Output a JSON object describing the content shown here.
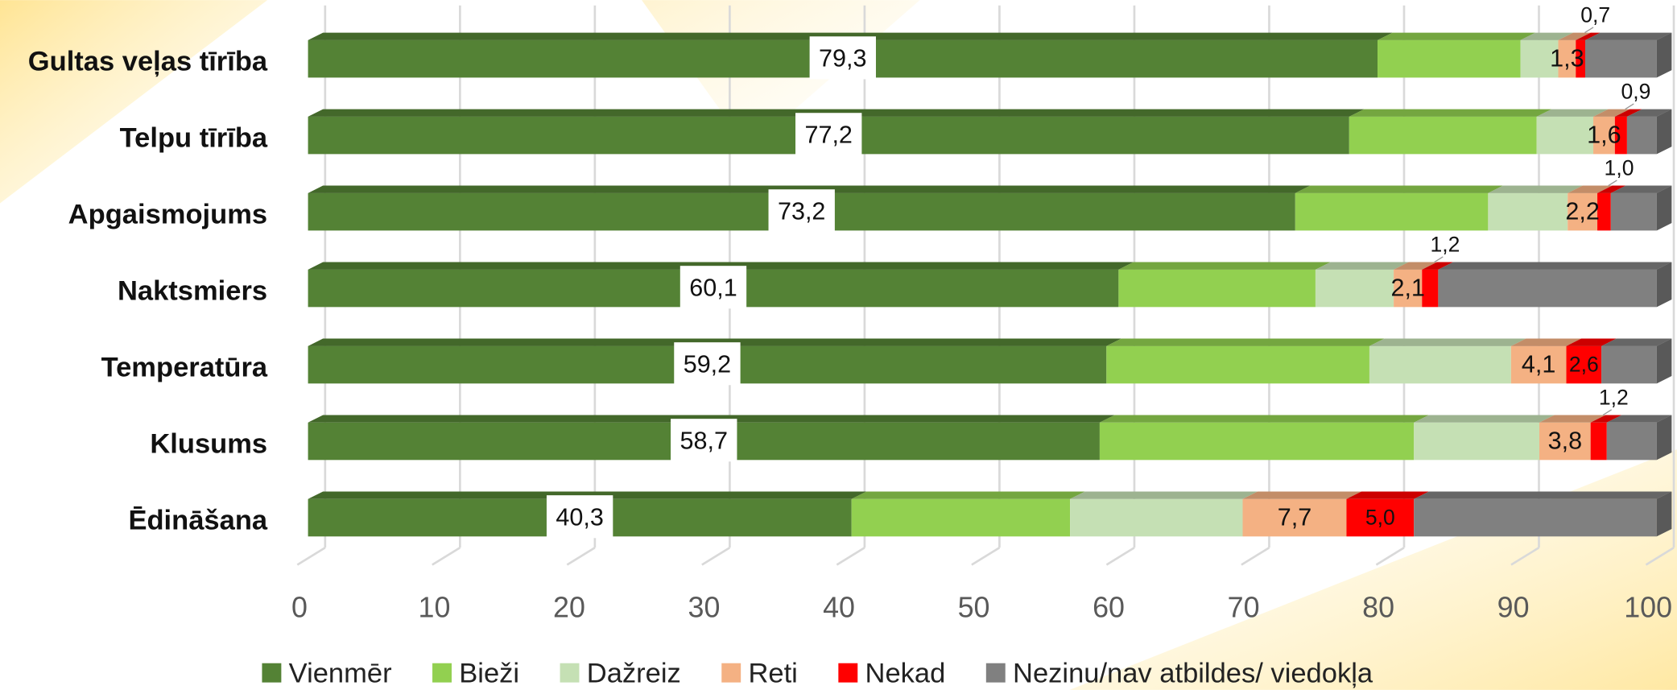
{
  "chart_data": {
    "type": "stacked-bar-horizontal",
    "categories": [
      "Gultas veļas tīrība",
      "Telpu tīrība",
      "Apgaismojums",
      "Naktsmiers",
      "Temperatūra",
      "Klusums",
      "Ēdināšana"
    ],
    "series": [
      {
        "name": "Vienmēr",
        "color": "#548235",
        "values": [
          79.3,
          77.2,
          73.2,
          60.1,
          59.2,
          58.7,
          40.3
        ],
        "value_labels": [
          "79,3",
          "77,2",
          "73,2",
          "60,1",
          "59,2",
          "58,7",
          "40,3"
        ]
      },
      {
        "name": "Bieži",
        "color": "#92d050",
        "values": [
          10.6,
          13.9,
          14.3,
          14.6,
          19.5,
          23.3,
          16.2
        ]
      },
      {
        "name": "Dažreiz",
        "color": "#c5e0b4",
        "values": [
          2.8,
          4.2,
          5.9,
          5.8,
          10.5,
          9.3,
          12.8
        ]
      },
      {
        "name": "Reti",
        "color": "#f4b183",
        "values": [
          1.3,
          1.6,
          2.2,
          2.1,
          4.1,
          3.8,
          7.7
        ],
        "value_labels": [
          "1,3",
          "1,6",
          "2,2",
          "2,1",
          "4,1",
          "3,8",
          "7,7"
        ]
      },
      {
        "name": "Nekad",
        "color": "#ff0000",
        "values": [
          0.7,
          0.9,
          1.0,
          1.2,
          2.6,
          1.2,
          5.0
        ],
        "value_labels": [
          "0,7",
          "0,9",
          "1,0",
          "1,2",
          "2,6",
          "1,2",
          "5,0"
        ]
      },
      {
        "name": "Nezinu/nav atbildes/ viedokļa",
        "color": "#808080",
        "values": [
          5.3,
          2.2,
          3.4,
          16.2,
          4.1,
          3.7,
          18.0
        ]
      }
    ],
    "xlim": [
      0,
      100
    ],
    "xticks": [
      0,
      10,
      20,
      30,
      40,
      50,
      60,
      70,
      80,
      90,
      100
    ],
    "grid": true,
    "legend": "bottom"
  }
}
